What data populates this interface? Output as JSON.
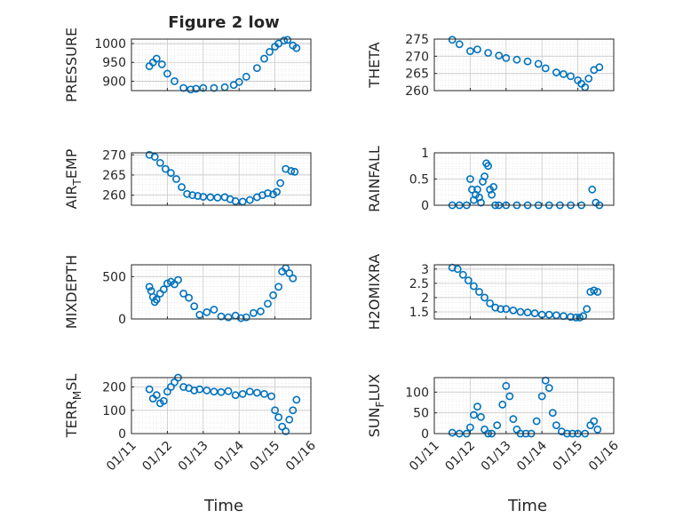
{
  "figure": {
    "title": "Figure 2 low",
    "x_axis_label": "Time",
    "x_tick_labels": [
      "01/11",
      "01/12",
      "01/13",
      "01/14",
      "01/15",
      "01/16"
    ]
  },
  "colors": {
    "marker": "#0072BD",
    "grid": "#c8c8c8",
    "axis": "#262626"
  },
  "chart_data": [
    {
      "type": "scatter",
      "title": "Figure 2 low",
      "ylabel": "PRESSURE",
      "ylim": [
        875,
        1012
      ],
      "yticks": [
        900,
        950,
        1000
      ],
      "ytick_labels": [
        "900",
        "950",
        "1000"
      ],
      "xlim": [
        0,
        5
      ],
      "x": [
        0.5,
        0.6,
        0.7,
        0.85,
        1.0,
        1.2,
        1.45,
        1.65,
        1.8,
        2.0,
        2.3,
        2.6,
        2.85,
        3.0,
        3.2,
        3.5,
        3.7,
        3.85,
        4.0,
        4.1,
        4.25,
        4.35,
        4.5,
        4.6
      ],
      "y": [
        940,
        950,
        960,
        945,
        920,
        900,
        882,
        878,
        880,
        882,
        882,
        884,
        890,
        898,
        912,
        935,
        960,
        978,
        992,
        1000,
        1008,
        1010,
        995,
        988
      ]
    },
    {
      "type": "scatter",
      "ylabel": "THETA",
      "ylim": [
        260,
        275
      ],
      "yticks": [
        260,
        265,
        270,
        275
      ],
      "ytick_labels": [
        "260",
        "265",
        "270",
        "275"
      ],
      "xlim": [
        0,
        5
      ],
      "x": [
        0.5,
        0.7,
        1.0,
        1.2,
        1.5,
        1.8,
        2.0,
        2.3,
        2.6,
        2.9,
        3.1,
        3.4,
        3.6,
        3.8,
        4.0,
        4.1,
        4.2,
        4.3,
        4.45,
        4.6
      ],
      "y": [
        274.8,
        273.5,
        271.5,
        272,
        271,
        270.2,
        269.5,
        269,
        268.5,
        267.8,
        266.5,
        265.3,
        264.8,
        264.2,
        263,
        262,
        261,
        263.5,
        266,
        266.8
      ]
    },
    {
      "type": "scatter",
      "ylabel": "AIR_TEMP",
      "ylim": [
        257.5,
        270.5
      ],
      "yticks": [
        260,
        265,
        270
      ],
      "ytick_labels": [
        "260",
        "265",
        "270"
      ],
      "xlim": [
        0,
        5
      ],
      "x": [
        0.5,
        0.65,
        0.8,
        0.95,
        1.1,
        1.25,
        1.4,
        1.55,
        1.7,
        1.85,
        2.0,
        2.2,
        2.4,
        2.6,
        2.75,
        2.9,
        3.1,
        3.3,
        3.5,
        3.65,
        3.8,
        3.95,
        4.05,
        4.15,
        4.3,
        4.45,
        4.55
      ],
      "y": [
        270,
        269.5,
        268,
        266.5,
        265.5,
        264,
        262,
        260.3,
        260,
        259.8,
        259.6,
        259.5,
        259.4,
        259.5,
        259,
        258.5,
        258.4,
        258.8,
        259.5,
        260,
        260.5,
        260.2,
        260.8,
        263,
        266.5,
        266,
        265.8
      ]
    },
    {
      "type": "scatter",
      "ylabel": "RAINFALL",
      "ylim": [
        0,
        1
      ],
      "yticks": [
        0,
        0.5,
        1
      ],
      "ytick_labels": [
        "0",
        "0.5",
        "1"
      ],
      "xlim": [
        0,
        5
      ],
      "x": [
        0.5,
        0.7,
        0.9,
        1.0,
        1.05,
        1.1,
        1.15,
        1.2,
        1.25,
        1.3,
        1.35,
        1.4,
        1.45,
        1.5,
        1.55,
        1.6,
        1.65,
        1.7,
        1.8,
        2.0,
        2.3,
        2.6,
        2.9,
        3.2,
        3.5,
        3.8,
        4.1,
        4.4,
        4.5,
        4.6
      ],
      "y": [
        0,
        0,
        0,
        0.5,
        0.3,
        0.1,
        0.2,
        0.3,
        0.15,
        0.05,
        0.45,
        0.55,
        0.8,
        0.75,
        0.3,
        0.2,
        0.35,
        0,
        0,
        0,
        0,
        0,
        0,
        0,
        0,
        0,
        0,
        0.3,
        0.05,
        0
      ]
    },
    {
      "type": "scatter",
      "ylabel": "MIXDEPTH",
      "ylim": [
        0,
        640
      ],
      "yticks": [
        0,
        500
      ],
      "ytick_labels": [
        "0",
        "500"
      ],
      "xlim": [
        0,
        5
      ],
      "x": [
        0.5,
        0.55,
        0.6,
        0.65,
        0.7,
        0.8,
        0.9,
        1.0,
        1.1,
        1.2,
        1.3,
        1.45,
        1.6,
        1.75,
        1.9,
        2.1,
        2.3,
        2.5,
        2.7,
        2.9,
        3.05,
        3.2,
        3.4,
        3.6,
        3.8,
        3.95,
        4.1,
        4.2,
        4.3,
        4.4,
        4.5
      ],
      "y": [
        380,
        330,
        260,
        200,
        230,
        300,
        350,
        420,
        440,
        410,
        460,
        300,
        250,
        150,
        50,
        80,
        110,
        30,
        20,
        40,
        10,
        20,
        70,
        90,
        180,
        280,
        380,
        560,
        600,
        540,
        480
      ]
    },
    {
      "type": "scatter",
      "ylabel": "H2OMIXRA",
      "ylim": [
        1.25,
        3.15
      ],
      "yticks": [
        1.5,
        2,
        2.5,
        3
      ],
      "ytick_labels": [
        "1.5",
        "2",
        "2.5",
        "3"
      ],
      "xlim": [
        0,
        5
      ],
      "x": [
        0.5,
        0.65,
        0.8,
        0.95,
        1.1,
        1.25,
        1.4,
        1.55,
        1.7,
        1.85,
        2.0,
        2.2,
        2.4,
        2.6,
        2.8,
        3.0,
        3.2,
        3.4,
        3.6,
        3.8,
        3.95,
        4.05,
        4.15,
        4.25,
        4.35,
        4.45,
        4.55
      ],
      "y": [
        3.05,
        3.0,
        2.8,
        2.6,
        2.4,
        2.2,
        2.0,
        1.8,
        1.65,
        1.6,
        1.6,
        1.55,
        1.5,
        1.48,
        1.45,
        1.4,
        1.4,
        1.38,
        1.35,
        1.32,
        1.3,
        1.3,
        1.35,
        1.6,
        2.2,
        2.25,
        2.2
      ]
    },
    {
      "type": "scatter",
      "ylabel": "TERR_MSL",
      "ylim": [
        0,
        240
      ],
      "yticks": [
        0,
        100,
        200
      ],
      "ytick_labels": [
        "0",
        "100",
        "200"
      ],
      "xlim": [
        0,
        5
      ],
      "x": [
        0.5,
        0.6,
        0.7,
        0.8,
        0.9,
        1.0,
        1.1,
        1.2,
        1.3,
        1.45,
        1.6,
        1.75,
        1.9,
        2.1,
        2.3,
        2.5,
        2.7,
        2.9,
        3.1,
        3.3,
        3.5,
        3.7,
        3.9,
        4.0,
        4.1,
        4.2,
        4.3,
        4.4,
        4.5,
        4.6
      ],
      "y": [
        190,
        150,
        165,
        130,
        140,
        180,
        200,
        220,
        240,
        200,
        195,
        185,
        190,
        185,
        180,
        178,
        182,
        165,
        170,
        180,
        175,
        170,
        160,
        100,
        70,
        30,
        10,
        60,
        100,
        145
      ]
    },
    {
      "type": "scatter",
      "ylabel": "SUN_FLUX",
      "ylim": [
        0,
        135
      ],
      "yticks": [
        0,
        50,
        100
      ],
      "ytick_labels": [
        "0",
        "50",
        "100"
      ],
      "xlim": [
        0,
        5
      ],
      "x": [
        0.5,
        0.7,
        0.9,
        1.0,
        1.1,
        1.2,
        1.3,
        1.4,
        1.5,
        1.6,
        1.75,
        1.9,
        2.0,
        2.1,
        2.2,
        2.3,
        2.4,
        2.55,
        2.7,
        2.85,
        3.0,
        3.1,
        3.2,
        3.3,
        3.4,
        3.55,
        3.7,
        3.85,
        4.0,
        4.2,
        4.35,
        4.45,
        4.55
      ],
      "y": [
        2,
        0,
        0,
        15,
        45,
        65,
        40,
        10,
        0,
        0,
        20,
        70,
        115,
        90,
        35,
        10,
        0,
        0,
        0,
        30,
        90,
        128,
        110,
        50,
        20,
        5,
        0,
        0,
        0,
        0,
        20,
        30,
        10
      ]
    }
  ]
}
